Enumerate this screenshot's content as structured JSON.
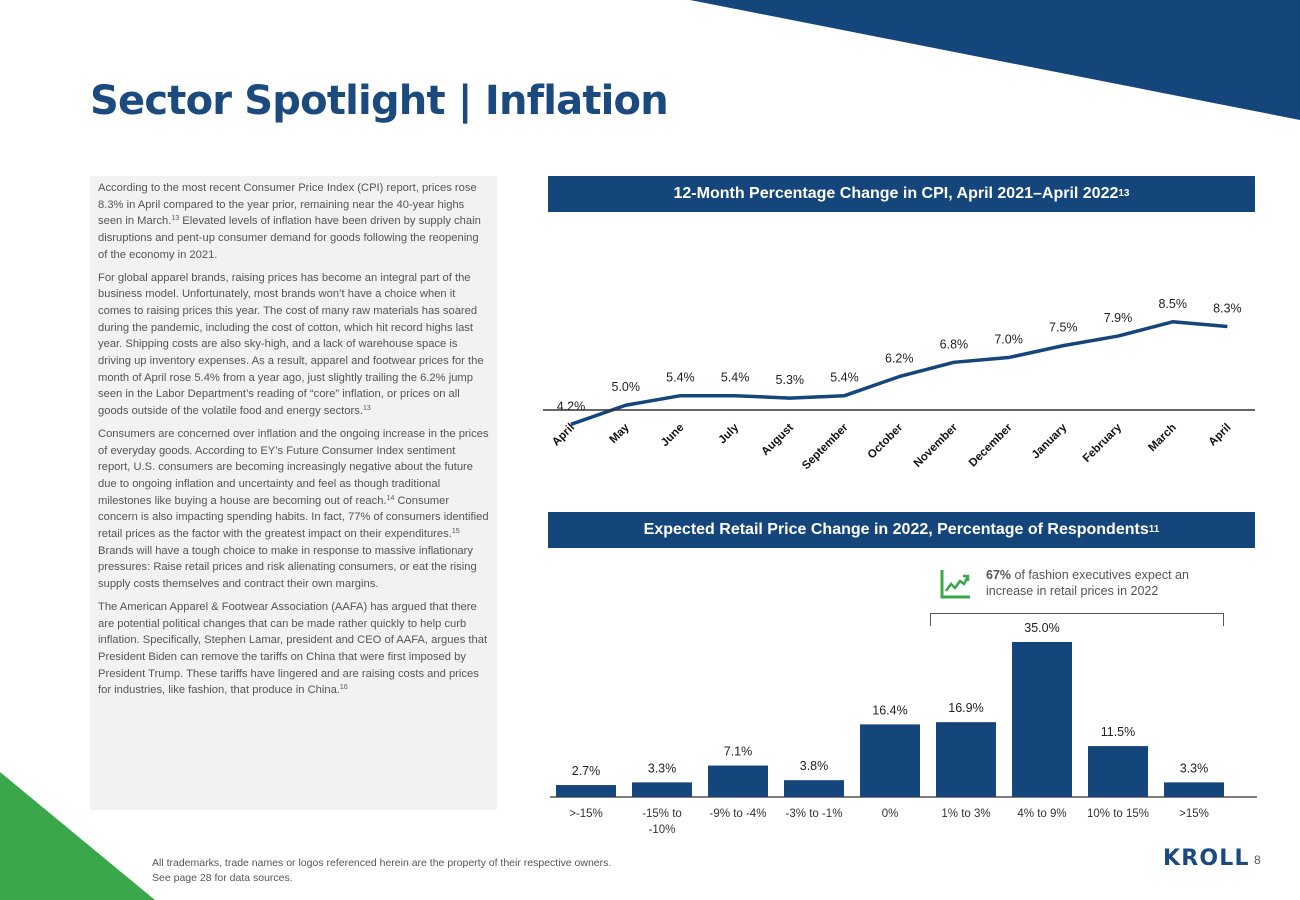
{
  "page": {
    "title": "Sector Spotlight | Inflation",
    "page_number": "8",
    "logo": "KROLL"
  },
  "colors": {
    "navy": "#15467b",
    "title_blue": "#1b4a7e",
    "green": "#3aa84a",
    "panel_gray": "#f2f2f2"
  },
  "body": {
    "p1_text": "According to the most recent Consumer Price Index (CPI) report, prices rose 8.3% in April compared to the year prior, remaining near the 40-year highs seen in March.",
    "p1_ref": "13",
    "p1_cont": " Elevated levels of inflation have been driven by supply chain disruptions and pent-up consumer demand for goods following the reopening of the economy in 2021.",
    "p2_text": "For global apparel brands, raising prices has become an integral part of the business model. Unfortunately, most brands won’t have a choice when it comes to raising prices this year. The cost of many raw materials has soared during the pandemic, including the cost of cotton, which hit record highs last year. Shipping costs are also sky-high, and a lack of warehouse space is driving up inventory expenses. As a result, apparel and footwear prices for the month of April rose 5.4% from a year ago, just slightly trailing the 6.2% jump seen in the Labor Department’s reading of “core” inflation, or prices on all goods outside of the volatile food and energy sectors.",
    "p2_ref": "13",
    "p3_text": "Consumers are concerned over inflation and the ongoing increase in the prices of everyday goods. According to EY’s Future Consumer Index sentiment report, U.S. consumers are becoming increasingly negative about the future due to ongoing inflation and uncertainty and feel as though traditional milestones like buying a house are becoming out of reach.",
    "p3_ref1": "14",
    "p3_cont": " Consumer concern is also impacting spending habits. In fact, 77% of consumers identified retail prices as the factor with the greatest impact on their expenditures.",
    "p3_ref2": "15",
    "p3_cont2": " Brands will have a tough choice to make in response to massive inflationary pressures: Raise retail prices and risk alienating consumers, or eat the rising supply costs themselves and contract their own margins.",
    "p4_text": "The American Apparel & Footwear Association (AAFA) has argued that there are potential political changes that can be made rather quickly to help curb inflation. Specifically, Stephen Lamar, president and CEO of AAFA, argues that President Biden can remove the tariffs on China that were first imposed by President Trump. These tariffs have lingered and are raising costs and prices for industries, like fashion, that produce in China.",
    "p4_ref": "16"
  },
  "callout": {
    "bold": "67%",
    "text": " of fashion executives expect an increase in retail prices in 2022",
    "icon": "trend-up-chart-icon"
  },
  "footer": {
    "line1": "All trademarks, trade names or logos referenced herein are the property of their respective owners.",
    "line2": "See page 28 for data sources."
  },
  "chart_data": [
    {
      "type": "line",
      "title": "12-Month Percentage Change in CPI, April 2021–April 2022",
      "title_ref": "13",
      "categories": [
        "April",
        "May",
        "June",
        "July",
        "August",
        "September",
        "October",
        "November",
        "December",
        "January",
        "February",
        "March",
        "April"
      ],
      "values": [
        4.2,
        5.0,
        5.4,
        5.4,
        5.3,
        5.4,
        6.2,
        6.8,
        7.0,
        7.5,
        7.9,
        8.5,
        8.3
      ],
      "labels": [
        "4.2%",
        "5.0%",
        "5.4%",
        "5.4%",
        "5.3%",
        "5.4%",
        "6.2%",
        "6.8%",
        "7.0%",
        "7.5%",
        "7.9%",
        "8.5%",
        "8.3%"
      ],
      "xlabel": "",
      "ylabel": "",
      "ylim": [
        0,
        9
      ],
      "grid": false
    },
    {
      "type": "bar",
      "title": "Expected Retail Price Change in 2022, Percentage of Respondents",
      "title_ref": "11",
      "categories": [
        ">-15%",
        "-15% to -10%",
        "-9% to -4%",
        "-3% to -1%",
        "0%",
        "1% to 3%",
        "4% to 9%",
        "10% to 15%",
        ">15%"
      ],
      "category_lines": [
        [
          ">-15%"
        ],
        [
          "-15% to",
          "-10%"
        ],
        [
          "-9% to -4%"
        ],
        [
          "-3% to -1%"
        ],
        [
          "0%"
        ],
        [
          "1% to 3%"
        ],
        [
          "4% to 9%"
        ],
        [
          "10% to 15%"
        ],
        [
          ">15%"
        ]
      ],
      "values": [
        2.7,
        3.3,
        7.1,
        3.8,
        16.4,
        16.9,
        35.0,
        11.5,
        3.3
      ],
      "labels": [
        "2.7%",
        "3.3%",
        "7.1%",
        "3.8%",
        "16.4%",
        "16.9%",
        "35.0%",
        "11.5%",
        "3.3%"
      ],
      "xlabel": "",
      "ylabel": "",
      "ylim": [
        0,
        35
      ],
      "grid": false
    }
  ]
}
